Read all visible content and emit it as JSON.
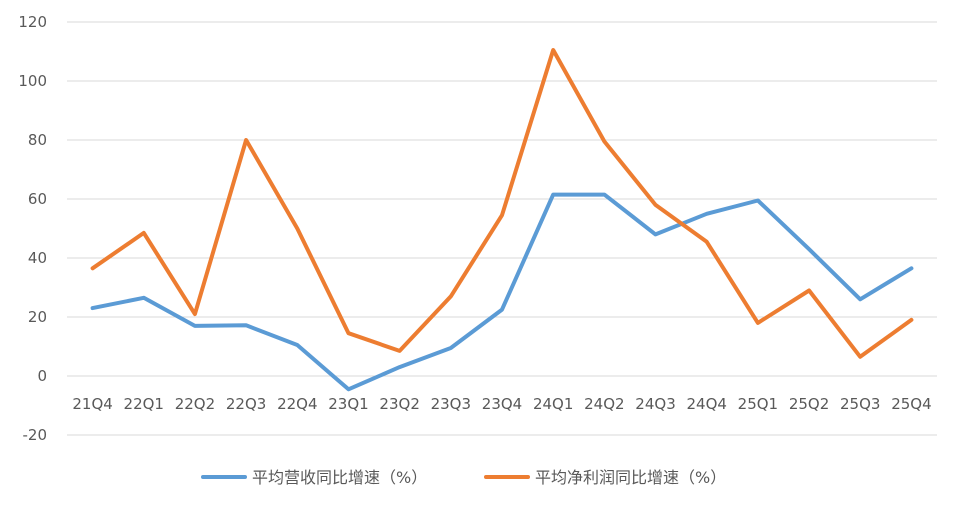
{
  "chart_data": {
    "type": "line",
    "title": "",
    "xlabel": "",
    "ylabel": "",
    "ylim": [
      -20,
      120
    ],
    "yticks": [
      -20,
      0,
      20,
      40,
      60,
      80,
      100,
      120
    ],
    "grid": true,
    "legend_position": "bottom",
    "categories": [
      "21Q4",
      "22Q1",
      "22Q2",
      "22Q3",
      "22Q4",
      "23Q1",
      "23Q2",
      "23Q3",
      "23Q4",
      "24Q1",
      "24Q2",
      "24Q3",
      "24Q4",
      "25Q1",
      "25Q2",
      "25Q3",
      "25Q4"
    ],
    "series": [
      {
        "name": "平均营收同比增速（%）",
        "color": "#5B9BD5",
        "values": [
          23,
          26.5,
          17,
          17.2,
          10.5,
          -4.5,
          3,
          9.5,
          22.5,
          61.5,
          61.5,
          48,
          55,
          59.5,
          43,
          26,
          36.5
        ]
      },
      {
        "name": "平均净利润同比增速（%）",
        "color": "#ED7D31",
        "values": [
          36.5,
          48.5,
          21,
          80,
          50,
          14.5,
          8.5,
          27,
          54.5,
          110.5,
          79.5,
          58,
          45.5,
          18,
          29,
          6.5,
          19
        ]
      }
    ]
  }
}
